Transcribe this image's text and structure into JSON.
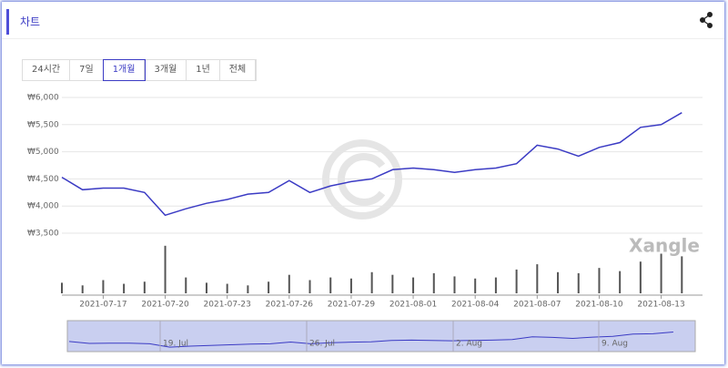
{
  "header": {
    "title": "차트"
  },
  "tabs": [
    "24시간",
    "7일",
    "1개월",
    "3개월",
    "1년",
    "전체"
  ],
  "active_tab": 2,
  "chart_data": {
    "type": "line",
    "watermark": "Xangle",
    "x": [
      "2021-07-15",
      "2021-07-16",
      "2021-07-17",
      "2021-07-18",
      "2021-07-19",
      "2021-07-20",
      "2021-07-21",
      "2021-07-22",
      "2021-07-23",
      "2021-07-24",
      "2021-07-25",
      "2021-07-26",
      "2021-07-27",
      "2021-07-28",
      "2021-07-29",
      "2021-07-30",
      "2021-07-31",
      "2021-08-01",
      "2021-08-02",
      "2021-08-03",
      "2021-08-04",
      "2021-08-05",
      "2021-08-06",
      "2021-08-07",
      "2021-08-08",
      "2021-08-09",
      "2021-08-10",
      "2021-08-11",
      "2021-08-12",
      "2021-08-13",
      "2021-08-14"
    ],
    "series": [
      {
        "name": "price",
        "color": "#3b3bc4",
        "values": [
          4530,
          4300,
          4330,
          4330,
          4250,
          3830,
          3950,
          4050,
          4120,
          4220,
          4250,
          4470,
          4250,
          4370,
          4450,
          4500,
          4670,
          4700,
          4670,
          4620,
          4670,
          4700,
          4780,
          5120,
          5050,
          4920,
          5080,
          5170,
          5450,
          5500,
          5720
        ]
      },
      {
        "name": "volume",
        "color": "#555555",
        "values": [
          20,
          15,
          25,
          18,
          22,
          90,
          30,
          20,
          18,
          15,
          22,
          35,
          25,
          30,
          28,
          40,
          35,
          30,
          38,
          32,
          28,
          30,
          45,
          55,
          40,
          38,
          48,
          42,
          60,
          75,
          70
        ]
      }
    ],
    "ylim": [
      3500,
      6000
    ],
    "yticks": [
      {
        "value": 3500,
        "label": "₩3,500"
      },
      {
        "value": 4000,
        "label": "₩4,000"
      },
      {
        "value": 4500,
        "label": "₩4,500"
      },
      {
        "value": 5000,
        "label": "₩5,000"
      },
      {
        "value": 5500,
        "label": "₩5,500"
      },
      {
        "value": 6000,
        "label": "₩6,000"
      }
    ],
    "volume_ylim": [
      0,
      100
    ],
    "xlim": [
      "2021-07-15",
      "2021-08-15"
    ],
    "xticks": [
      "2021-07-17",
      "2021-07-20",
      "2021-07-23",
      "2021-07-26",
      "2021-07-29",
      "2021-08-01",
      "2021-08-04",
      "2021-08-07",
      "2021-08-10",
      "2021-08-13"
    ],
    "navigator_labels": [
      "19. Jul",
      "26. Jul",
      "2. Aug",
      "9. Aug"
    ],
    "grid": true
  }
}
